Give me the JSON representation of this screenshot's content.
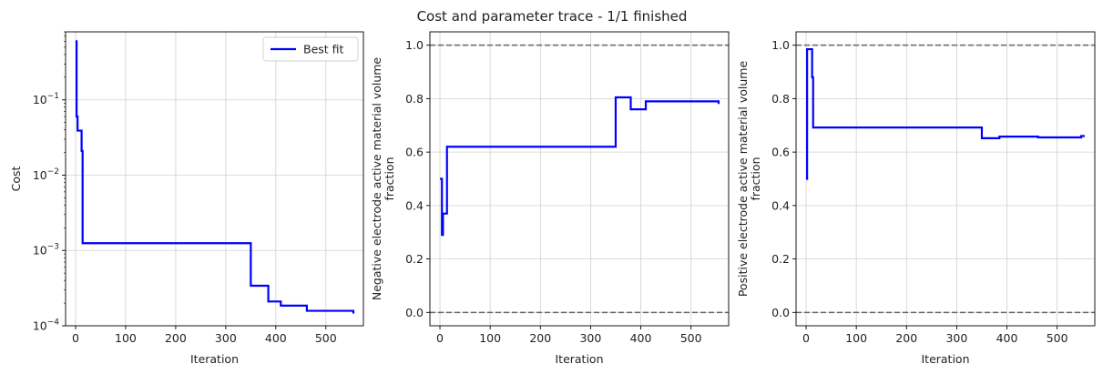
{
  "figure": {
    "title": "Cost and parameter trace - 1/1 finished"
  },
  "colors": {
    "series": "#0000ff",
    "bound_line": "#666666",
    "grid": "#d0d0d0",
    "axis": "#000000"
  },
  "chart_data": [
    {
      "type": "line",
      "ylabel": "Cost",
      "xlabel": "Iteration",
      "yscale": "log",
      "ylim": [
        0.0001,
        0.8
      ],
      "xlim": [
        -20,
        575
      ],
      "xticks": [
        0,
        100,
        200,
        300,
        400,
        500
      ],
      "yticks": [
        {
          "value": 0.1,
          "base": "10",
          "exp": "−1"
        },
        {
          "value": 0.01,
          "base": "10",
          "exp": "−2"
        },
        {
          "value": 0.001,
          "base": "10",
          "exp": "−3"
        },
        {
          "value": 0.0001,
          "base": "10",
          "exp": "−4"
        }
      ],
      "grid": true,
      "legend": {
        "position": "top-right",
        "entries": [
          "Best fit"
        ]
      },
      "series": [
        {
          "name": "Best fit",
          "step": true,
          "x": [
            0,
            2,
            4,
            12,
            14,
            16,
            350,
            385,
            410,
            462,
            555
          ],
          "y": [
            0.6,
            0.06,
            0.039,
            0.021,
            0.00125,
            0.00125,
            0.00034,
            0.00021,
            0.000185,
            0.000158,
            0.000145
          ]
        }
      ]
    },
    {
      "type": "line",
      "ylabel": "Negative electrode active material volume\nfraction",
      "xlabel": "Iteration",
      "yscale": "linear",
      "ylim": [
        -0.05,
        1.05
      ],
      "xlim": [
        -20,
        575
      ],
      "xticks": [
        0,
        100,
        200,
        300,
        400,
        500
      ],
      "yticks": [
        0.0,
        0.2,
        0.4,
        0.6,
        0.8,
        1.0
      ],
      "ytick_labels": [
        "0.0",
        "0.2",
        "0.4",
        "0.6",
        "0.8",
        "1.0"
      ],
      "grid": true,
      "hlines": [
        0.0,
        1.0
      ],
      "series": [
        {
          "step": true,
          "x": [
            0,
            2,
            4,
            6,
            14,
            16,
            350,
            380,
            410,
            555
          ],
          "y": [
            0.5,
            0.5,
            0.29,
            0.37,
            0.62,
            0.62,
            0.805,
            0.76,
            0.79,
            0.78
          ]
        }
      ]
    },
    {
      "type": "line",
      "ylabel": "Positive electrode active material volume\nfraction",
      "xlabel": "Iteration",
      "yscale": "linear",
      "ylim": [
        -0.05,
        1.05
      ],
      "xlim": [
        -20,
        575
      ],
      "xticks": [
        0,
        100,
        200,
        300,
        400,
        500
      ],
      "yticks": [
        0.0,
        0.2,
        0.4,
        0.6,
        0.8,
        1.0
      ],
      "ytick_labels": [
        "0.0",
        "0.2",
        "0.4",
        "0.6",
        "0.8",
        "1.0"
      ],
      "grid": true,
      "hlines": [
        0.0,
        1.0
      ],
      "series": [
        {
          "step": true,
          "x": [
            0,
            2,
            12,
            14,
            350,
            385,
            462,
            548,
            555
          ],
          "y": [
            0.5,
            0.985,
            0.88,
            0.692,
            0.652,
            0.658,
            0.655,
            0.66,
            0.66
          ]
        }
      ]
    }
  ]
}
